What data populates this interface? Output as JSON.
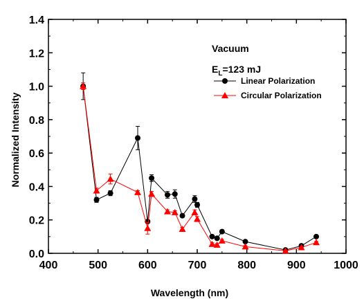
{
  "chart_data": {
    "type": "line",
    "xlabel": "Wavelength (nm)",
    "ylabel": "Normalized Intensity",
    "xlim": [
      400,
      1000
    ],
    "ylim": [
      0.0,
      1.4
    ],
    "x_ticks": [
      "400",
      "500",
      "600",
      "700",
      "800",
      "900",
      "1000"
    ],
    "y_ticks": [
      "0.0",
      "0.2",
      "0.4",
      "0.6",
      "0.8",
      "1.0",
      "1.2",
      "1.4"
    ],
    "grid": false,
    "legend_position": "top-right",
    "annotations": {
      "condition": "Vacuum",
      "energy_prefix": "E",
      "energy_sub": "L",
      "energy_suffix": "=123 mJ"
    },
    "series": [
      {
        "name": "Linear Polarization",
        "color": "#000000",
        "marker": "circle",
        "x": [
          470,
          497,
          525,
          580,
          600,
          608,
          640,
          655,
          670,
          695,
          700,
          730,
          740,
          750,
          797,
          878,
          910,
          940
        ],
        "y": [
          1.0,
          0.32,
          0.36,
          0.69,
          0.19,
          0.45,
          0.35,
          0.355,
          0.225,
          0.325,
          0.29,
          0.1,
          0.09,
          0.13,
          0.07,
          0.02,
          0.045,
          0.1
        ],
        "err": [
          0.08,
          0.015,
          0.015,
          0.07,
          0.01,
          0.02,
          0.02,
          0.025,
          0.01,
          0.02,
          0.015,
          0.008,
          0.008,
          0.01,
          0.008,
          0.005,
          0.005,
          0.008
        ]
      },
      {
        "name": "Circular Polarization",
        "color": "#ff0000",
        "marker": "triangle",
        "x": [
          470,
          497,
          525,
          580,
          600,
          608,
          640,
          655,
          670,
          695,
          700,
          730,
          740,
          750,
          797,
          878,
          910,
          940
        ],
        "y": [
          1.0,
          0.375,
          0.445,
          0.365,
          0.15,
          0.355,
          0.25,
          0.245,
          0.145,
          0.245,
          0.205,
          0.055,
          0.05,
          0.075,
          0.04,
          0.015,
          0.035,
          0.065
        ],
        "err": [
          0.02,
          0.015,
          0.03,
          0.01,
          0.035,
          0.015,
          0.01,
          0.01,
          0.01,
          0.015,
          0.015,
          0.008,
          0.008,
          0.008,
          0.006,
          0.004,
          0.005,
          0.006
        ]
      }
    ]
  }
}
